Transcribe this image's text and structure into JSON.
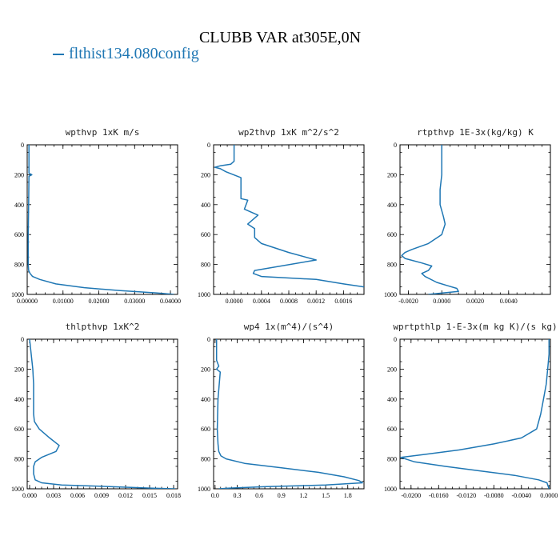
{
  "title": "CLUBB VAR at305E,0N",
  "legend": [
    {
      "label": "flthist134.080config",
      "color": "#1f77b4"
    }
  ],
  "chart_data": [
    {
      "type": "line",
      "title": "wpthvp  1xK m/s",
      "xlim": [
        0,
        0.042
      ],
      "xticks": [
        0,
        0.01,
        0.02,
        0.03,
        0.04
      ],
      "xtick_labels": [
        "0.00000",
        "0.01000",
        "0.02000",
        "0.03000",
        "0.04000"
      ],
      "ylim": [
        1000,
        0
      ],
      "yticks": [
        0,
        200,
        400,
        600,
        800,
        1000
      ],
      "ytick_labels": [
        "0",
        "200",
        "400",
        "600",
        "800",
        "1000"
      ],
      "series": [
        {
          "color": "#1f77b4",
          "x": [
            0.0005,
            0.0005,
            0.0013,
            0.0005,
            0.0004,
            0.0003,
            0.0003,
            0.0003,
            0.0004,
            0.0008,
            0.0015,
            0.0035,
            0.008,
            0.016,
            0.026,
            0.036,
            0.041
          ],
          "y": [
            0,
            190,
            200,
            210,
            400,
            600,
            700,
            800,
            840,
            860,
            880,
            900,
            930,
            955,
            975,
            990,
            1000
          ]
        }
      ]
    },
    {
      "type": "line",
      "title": "wp2thvp  1xK m^2/s^2",
      "xlim": [
        -0.0003,
        0.0019
      ],
      "xticks": [
        0,
        0.0004,
        0.0008,
        0.0012,
        0.0016
      ],
      "xtick_labels": [
        "0.0000",
        "0.0004",
        "0.0008",
        "0.0012",
        "0.0016"
      ],
      "ylim": [
        1000,
        0
      ],
      "yticks": [
        0,
        200,
        400,
        600,
        800,
        1000
      ],
      "ytick_labels": [
        "0",
        "200",
        "400",
        "600",
        "800",
        "1000"
      ],
      "series": [
        {
          "color": "#1f77b4",
          "x": [
            0,
            0,
            -5e-05,
            -0.0002,
            -0.00028,
            -0.0002,
            -0.00012,
            0.0001,
            0.0001,
            0.0001,
            0.0002,
            0.00015,
            0.00035,
            0.0002,
            0.0003,
            0.0003,
            0.0004,
            0.0008,
            0.0012,
            0.0003,
            0.00028,
            0.0004,
            0.0012,
            0.0016,
            0.0019
          ],
          "y": [
            0,
            110,
            130,
            140,
            150,
            160,
            180,
            220,
            300,
            360,
            370,
            430,
            470,
            530,
            560,
            620,
            660,
            720,
            770,
            840,
            860,
            880,
            900,
            930,
            950
          ]
        }
      ]
    },
    {
      "type": "line",
      "title": "rtpthvp  1E-3x(kg/kg) K",
      "xlim": [
        -0.0025,
        0.0065
      ],
      "xticks": [
        -0.002,
        0,
        0.002,
        0.004
      ],
      "xtick_labels": [
        "-0.0020",
        "0.0000",
        "0.0020",
        "0.0040"
      ],
      "ylim": [
        1000,
        0
      ],
      "yticks": [
        0,
        200,
        400,
        600,
        800,
        1000
      ],
      "ytick_labels": [
        "0",
        "200",
        "400",
        "600",
        "800",
        "1000"
      ],
      "series": [
        {
          "color": "#1f77b4",
          "x": [
            0,
            0,
            -0.0001,
            -0.0001,
            0.0001,
            0.0002,
            0,
            -0.0008,
            -0.0018,
            -0.0022,
            -0.0024,
            -0.0022,
            -0.0012,
            -0.0006,
            -0.0008,
            -0.0012,
            -0.001,
            -0.0003,
            0.0003,
            0.0009,
            0.001,
            -0.0008
          ],
          "y": [
            0,
            200,
            300,
            400,
            480,
            530,
            600,
            660,
            700,
            720,
            740,
            760,
            790,
            810,
            840,
            860,
            880,
            920,
            940,
            960,
            980,
            1000
          ]
        }
      ]
    },
    {
      "type": "line",
      "title": "thlpthvp  1xK^2",
      "xlim": [
        -0.0003,
        0.0185
      ],
      "xticks": [
        0,
        0.003,
        0.006,
        0.009,
        0.012,
        0.015,
        0.018
      ],
      "xtick_labels": [
        "0.000",
        "0.003",
        "0.006",
        "0.009",
        "0.012",
        "0.015",
        "0.018"
      ],
      "ylim": [
        1000,
        0
      ],
      "yticks": [
        0,
        200,
        400,
        600,
        800,
        1000
      ],
      "ytick_labels": [
        "0",
        "200",
        "400",
        "600",
        "800",
        "1000"
      ],
      "series": [
        {
          "color": "#1f77b4",
          "x": [
            0,
            0.0001,
            0.0002,
            0.0004,
            0.0005,
            0.0005,
            0.0005,
            0.0006,
            0.0012,
            0.0025,
            0.0037,
            0.0033,
            0.0015,
            0.0007,
            0.0005,
            0.0005,
            0.0007,
            0.0015,
            0.004,
            0.01,
            0.015,
            0.0182
          ],
          "y": [
            0,
            50,
            100,
            200,
            300,
            400,
            500,
            550,
            600,
            660,
            710,
            750,
            790,
            820,
            850,
            900,
            940,
            960,
            975,
            985,
            995,
            1000
          ]
        }
      ]
    },
    {
      "type": "line",
      "title": "wp4  1x(m^4)/(s^4)",
      "xlim": [
        -0.02,
        2.02
      ],
      "xticks": [
        0,
        0.3,
        0.6,
        0.9,
        1.2,
        1.5,
        1.8
      ],
      "xtick_labels": [
        "0.0",
        "0.3",
        "0.6",
        "0.9",
        "1.2",
        "1.5",
        "1.8"
      ],
      "ylim": [
        1000,
        0
      ],
      "yticks": [
        0,
        200,
        400,
        600,
        800,
        1000
      ],
      "ytick_labels": [
        "0",
        "200",
        "400",
        "600",
        "800",
        "1000"
      ],
      "series": [
        {
          "color": "#1f77b4",
          "x": [
            0.02,
            0.02,
            0.05,
            0.02,
            0.07,
            0.04,
            0.03,
            0.04,
            0.05,
            0.08,
            0.15,
            0.4,
            0.9,
            1.4,
            1.75,
            1.95,
            2.0,
            1.5,
            0.7,
            0.2,
            0.05
          ],
          "y": [
            0,
            140,
            180,
            200,
            220,
            400,
            600,
            700,
            750,
            780,
            800,
            830,
            860,
            890,
            920,
            945,
            960,
            975,
            985,
            995,
            1000
          ]
        }
      ]
    },
    {
      "type": "line",
      "title": "wprtpthlp  1-E-3x(m kg K)/(s kg)",
      "xlim": [
        -0.0216,
        0.0002
      ],
      "xticks": [
        -0.02,
        -0.016,
        -0.012,
        -0.008,
        -0.004,
        0
      ],
      "xtick_labels": [
        "-0.0200",
        "-0.0160",
        "-0.0120",
        "-0.0080",
        "-0.0040",
        "0.0000"
      ],
      "ylim": [
        1000,
        0
      ],
      "yticks": [
        0,
        200,
        400,
        600,
        800,
        1000
      ],
      "ytick_labels": [
        "0",
        "200",
        "400",
        "600",
        "800",
        "1000"
      ],
      "series": [
        {
          "color": "#1f77b4",
          "x": [
            0,
            0,
            -0.0002,
            -0.0004,
            -0.0008,
            -0.0012,
            -0.0018,
            -0.004,
            -0.008,
            -0.013,
            -0.018,
            -0.0215,
            -0.0195,
            -0.015,
            -0.01,
            -0.005,
            -0.0015,
            -0.0003,
            0
          ],
          "y": [
            0,
            100,
            200,
            300,
            400,
            500,
            600,
            660,
            700,
            740,
            770,
            790,
            820,
            850,
            880,
            910,
            940,
            960,
            1000
          ]
        }
      ]
    }
  ]
}
